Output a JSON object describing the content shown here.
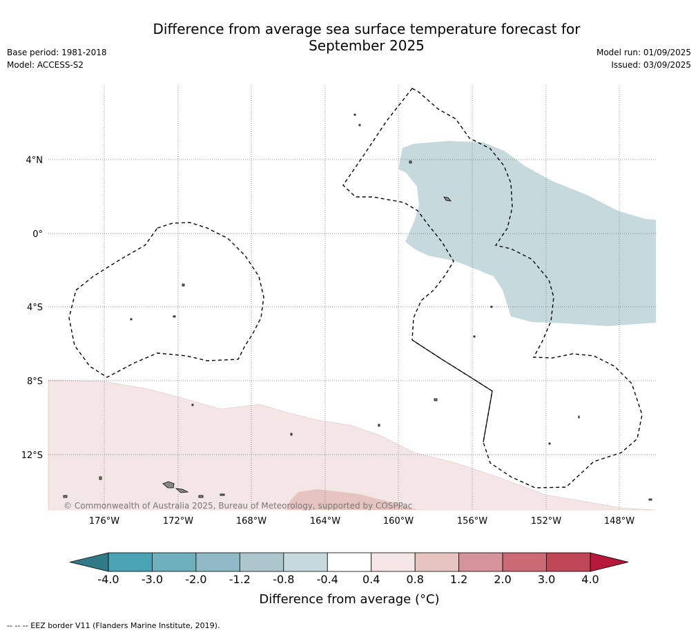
{
  "header": {
    "title_line1": "Difference from average sea surface temperature forecast for",
    "title_line2": "September 2025",
    "base_period": "Base period: 1981-2018",
    "model": "Model: ACCESS-S2",
    "model_run": "Model run: 01/09/2025",
    "issued": "Issued: 03/09/2025"
  },
  "map": {
    "lat_labels": [
      "4°N",
      "0°",
      "4°S",
      "8°S",
      "12°S"
    ],
    "lon_labels": [
      "176°W",
      "172°W",
      "168°W",
      "164°W",
      "160°W",
      "156°W",
      "152°W",
      "148°W"
    ],
    "copyright": "© Commonwealth of Australia 2025, Bureau of Meteorology, supported by COSPPac",
    "colors": {
      "cool_anomaly": "#c6dadd",
      "warm_anomaly_light": "#f4e6e5",
      "warm_anomaly_mid": "#e6c5c1",
      "land": "#999999",
      "eez_border": "#000000",
      "gridline": "#666666"
    }
  },
  "colorbar": {
    "ticks": [
      "-4.0",
      "-3.0",
      "-2.0",
      "-1.2",
      "-0.8",
      "-0.4",
      "0.4",
      "0.8",
      "1.2",
      "2.0",
      "3.0",
      "4.0"
    ],
    "colors": [
      "#2f7a86",
      "#4aa3b4",
      "#6fb0bd",
      "#8fbac5",
      "#adc6cd",
      "#c6dadd",
      "#ffffff",
      "#f4e6e5",
      "#e6c5c1",
      "#d5939a",
      "#c96a75",
      "#bf4655",
      "#b5183a"
    ],
    "label": "Difference from average (°C)"
  },
  "footer": {
    "eez_note": "--  --  -- EEZ border V11 (Flanders Marine Institute, 2019)."
  }
}
